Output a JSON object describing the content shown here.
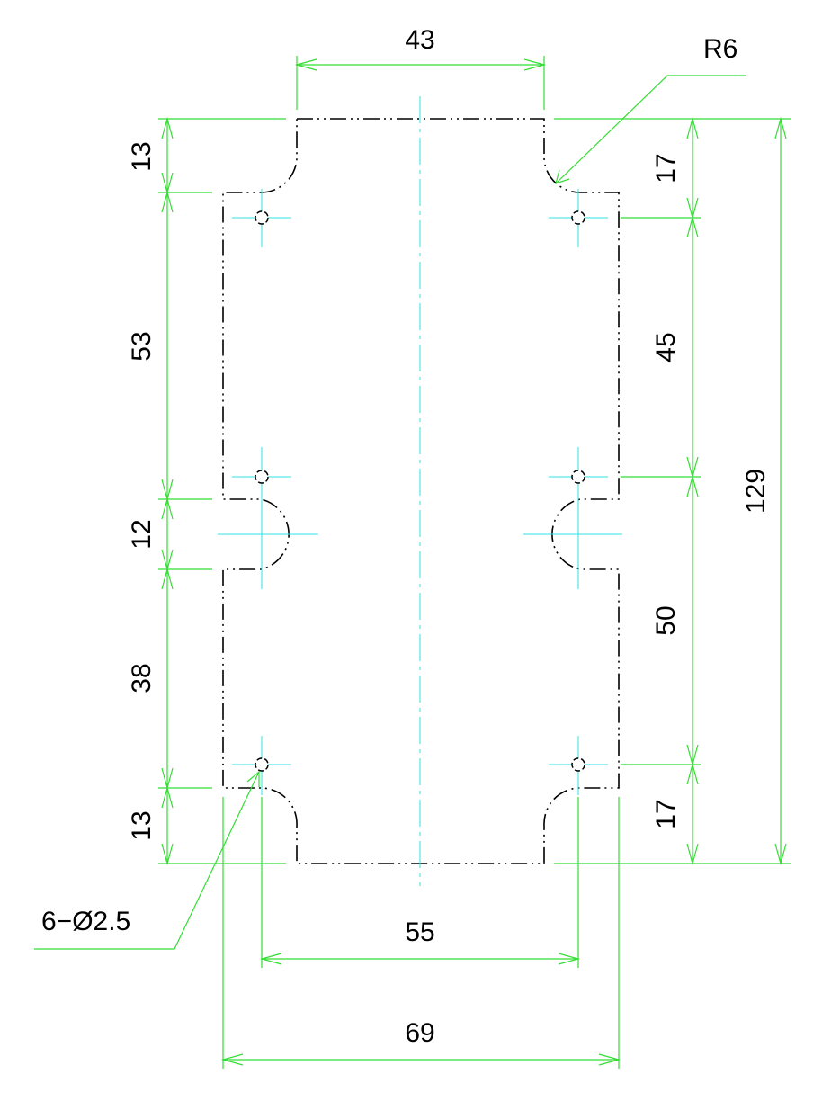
{
  "dimensions": {
    "top_width": "43",
    "fillet_radius": "R6",
    "left_top": "13",
    "left_upper": "53",
    "left_notch": "12",
    "left_lower": "38",
    "left_bottom": "13",
    "right_top": "17",
    "right_upper": "45",
    "right_lower": "50",
    "right_bottom": "17",
    "overall_height": "129",
    "hole_callout": "6−Ø2.5",
    "hole_spacing": "55",
    "overall_width": "69"
  },
  "colors": {
    "outline": "#000000",
    "dimension": "#33dd33",
    "centerline": "#33e0e0",
    "text": "#000000"
  }
}
